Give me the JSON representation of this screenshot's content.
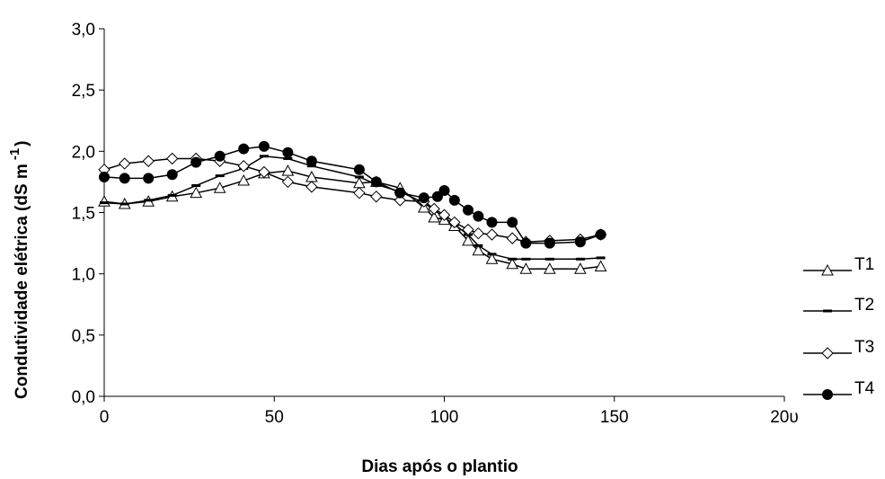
{
  "chart_data": {
    "type": "line",
    "xlabel": "Dias após o plantio",
    "ylabel": "Condutividade elétrica (dS m",
    "ylabel_superscript": "-1",
    "ylabel_close": ")",
    "xlim": [
      0,
      200
    ],
    "ylim": [
      0,
      3
    ],
    "xticks": [
      0,
      50,
      100,
      150,
      200
    ],
    "xtick_labels": [
      "0",
      "50",
      "100",
      "150",
      "20υ"
    ],
    "yticks": [
      0,
      0.5,
      1,
      1.5,
      2,
      2.5,
      3
    ],
    "ytick_labels": [
      "0,0",
      "0,5",
      "1,0",
      "1,5",
      "2,0",
      "2,5",
      "3,0"
    ],
    "grid": false,
    "legend_position": "right",
    "series": [
      {
        "name": "T1",
        "marker": "triangle",
        "x": [
          0,
          6,
          13,
          20,
          27,
          34,
          41,
          47,
          54,
          61,
          75,
          80,
          87,
          94,
          97,
          100,
          103,
          107,
          110,
          114,
          120,
          124,
          131,
          140,
          146
        ],
        "y": [
          1.59,
          1.57,
          1.59,
          1.63,
          1.66,
          1.7,
          1.76,
          1.82,
          1.84,
          1.79,
          1.74,
          1.75,
          1.7,
          1.54,
          1.46,
          1.44,
          1.39,
          1.27,
          1.19,
          1.12,
          1.08,
          1.04,
          1.04,
          1.04,
          1.06
        ]
      },
      {
        "name": "T2",
        "marker": "dash",
        "x": [
          0,
          6,
          13,
          20,
          27,
          34,
          41,
          47,
          54,
          61,
          75,
          80,
          87,
          94,
          97,
          100,
          103,
          107,
          110,
          114,
          120,
          124,
          131,
          140,
          146
        ],
        "y": [
          1.58,
          1.57,
          1.6,
          1.64,
          1.72,
          1.8,
          1.86,
          1.96,
          1.94,
          1.88,
          1.79,
          1.73,
          1.67,
          1.58,
          1.52,
          1.46,
          1.4,
          1.32,
          1.23,
          1.16,
          1.12,
          1.12,
          1.12,
          1.12,
          1.13
        ]
      },
      {
        "name": "T3",
        "marker": "diamond",
        "x": [
          0,
          6,
          13,
          20,
          27,
          34,
          41,
          47,
          54,
          61,
          75,
          80,
          87,
          94,
          97,
          100,
          103,
          107,
          110,
          114,
          120,
          124,
          131,
          140,
          146
        ],
        "y": [
          1.85,
          1.9,
          1.92,
          1.94,
          1.94,
          1.92,
          1.88,
          1.83,
          1.75,
          1.71,
          1.66,
          1.63,
          1.6,
          1.59,
          1.53,
          1.48,
          1.42,
          1.36,
          1.33,
          1.32,
          1.29,
          1.26,
          1.27,
          1.28,
          1.32
        ]
      },
      {
        "name": "T4",
        "marker": "circle",
        "x": [
          0,
          6,
          13,
          20,
          27,
          34,
          41,
          47,
          54,
          61,
          75,
          80,
          87,
          94,
          98,
          100,
          103,
          107,
          110,
          114,
          120,
          124,
          131,
          140,
          146
        ],
        "y": [
          1.79,
          1.78,
          1.78,
          1.81,
          1.91,
          1.96,
          2.02,
          2.04,
          1.99,
          1.92,
          1.85,
          1.75,
          1.66,
          1.62,
          1.63,
          1.68,
          1.6,
          1.52,
          1.47,
          1.42,
          1.42,
          1.25,
          1.25,
          1.26,
          1.32
        ]
      }
    ]
  }
}
